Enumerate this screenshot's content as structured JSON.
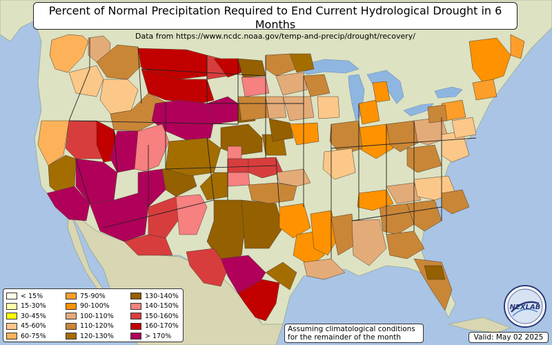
{
  "title": "Percent of Normal Precipitation Required to End Current Hydrological Drought in 6 Months",
  "subtitle": "Data from https://www.ncdc.noaa.gov/temp-and-precip/drought/recovery/",
  "legend": [
    {
      "label": "< 15%",
      "color": "#ffffe5"
    },
    {
      "label": "15-30%",
      "color": "#ffffa8"
    },
    {
      "label": "30-45%",
      "color": "#ffff00"
    },
    {
      "label": "45-60%",
      "color": "#fcc889"
    },
    {
      "label": "60-75%",
      "color": "#fdb25a"
    },
    {
      "label": "75-90%",
      "color": "#fd9e2a"
    },
    {
      "label": "90-100%",
      "color": "#fe9200"
    },
    {
      "label": "100-110%",
      "color": "#e3ab78"
    },
    {
      "label": "110-120%",
      "color": "#c98637"
    },
    {
      "label": "120-130%",
      "color": "#a36d00"
    },
    {
      "label": "130-140%",
      "color": "#946000"
    },
    {
      "label": "140-150%",
      "color": "#f78080"
    },
    {
      "label": "150-160%",
      "color": "#d83d3d"
    },
    {
      "label": "160-170%",
      "color": "#c20000"
    },
    {
      "label": "> 170%",
      "color": "#b0005a"
    }
  ],
  "assumption_note": "Assuming climatological conditions\nfor the remainder of the month",
  "valid_label": "Valid: May 02 2025",
  "logo_text": "NEXLAB",
  "colors": {
    "ocean": "#a9c4e4",
    "land": "#dfe3c4",
    "lakes": "#8fb6e0"
  }
}
